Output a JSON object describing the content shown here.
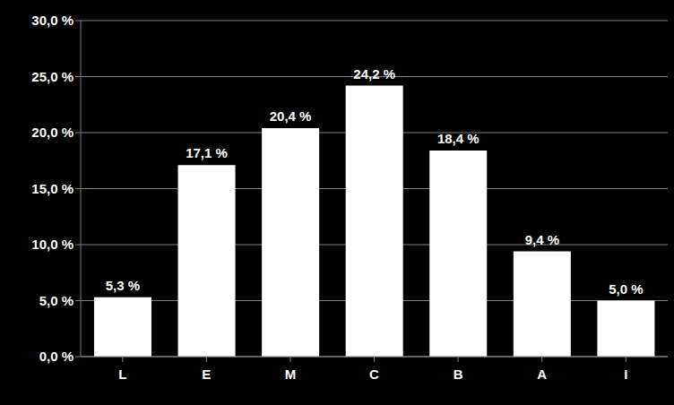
{
  "chart_data": {
    "type": "bar",
    "categories": [
      "L",
      "E",
      "M",
      "C",
      "B",
      "A",
      "I"
    ],
    "values": [
      5.3,
      17.1,
      20.4,
      24.2,
      18.4,
      9.4,
      5.0
    ],
    "value_labels": [
      "5,3 %",
      "17,1 %",
      "20,4 %",
      "24,2 %",
      "18,4 %",
      "9,4 %",
      "5,0 %"
    ],
    "data_labels": true,
    "color": "#ffffff",
    "ylim": [
      0,
      30
    ],
    "yticks": [
      {
        "value": 0,
        "label": "0,0 %"
      },
      {
        "value": 5,
        "label": "5,0 %"
      },
      {
        "value": 10,
        "label": "10,0 %"
      },
      {
        "value": 15,
        "label": "15,0 %"
      },
      {
        "value": 20,
        "label": "20,0 %"
      },
      {
        "value": 25,
        "label": "25,0 %"
      },
      {
        "value": 30,
        "label": "30,0 %"
      }
    ],
    "grid": true
  }
}
